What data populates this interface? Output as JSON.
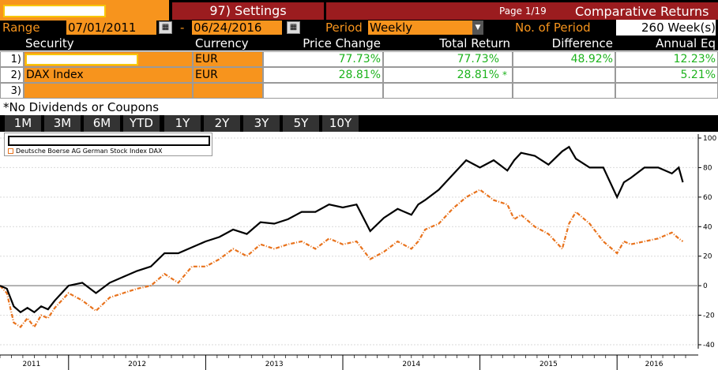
{
  "toolbar": {
    "settings_label": "97) Settings",
    "page": "Page 1/19",
    "title": "Comparative Returns"
  },
  "range": {
    "label": "Range",
    "start": "07/01/2011",
    "dash": "-",
    "end": "06/24/2016",
    "period_label": "Period",
    "period_value": "Weekly",
    "num_period_label": "No. of Period",
    "num_period_value": "260 Week(s)"
  },
  "table": {
    "headers": [
      "Security",
      "Currency",
      "Price Change",
      "Total Return",
      "Difference",
      "Annual Eq"
    ],
    "rows": [
      {
        "idx": "1)",
        "security": "",
        "currency": "EUR",
        "price_change": "77.73%",
        "total_return": "77.73%",
        "marker": "",
        "difference": "48.92%",
        "annual": "12.23%"
      },
      {
        "idx": "2)",
        "security": "DAX Index",
        "currency": "EUR",
        "price_change": "28.81%",
        "total_return": "28.81%",
        "marker": "*",
        "difference": "",
        "annual": "5.21%"
      },
      {
        "idx": "3)",
        "security": "",
        "currency": "",
        "price_change": "",
        "total_return": "",
        "marker": "",
        "difference": "",
        "annual": ""
      }
    ]
  },
  "note": "*No Dividends or Coupons",
  "timeframes": [
    "1M",
    "3M",
    "6M",
    "YTD",
    "1Y",
    "2Y",
    "3Y",
    "5Y",
    "10Y"
  ],
  "legend": {
    "series2": "Deutsche Boerse AG German Stock Index DAX"
  },
  "colors": {
    "accent_orange": "#f7941d",
    "maroon": "#9b1c1f",
    "positive_green": "#1db31d",
    "series1": "#000000",
    "series2": "#e8721c"
  },
  "chart_data": {
    "type": "line",
    "y_ticks": [
      100,
      80,
      60,
      40,
      20,
      0,
      -20,
      -40
    ],
    "ylim": [
      -40,
      100
    ],
    "x_ticks": [
      "2011",
      "2012",
      "2013",
      "2014",
      "2015",
      "2016"
    ],
    "xlim": [
      2011.5,
      2016.5
    ],
    "series": [
      {
        "name": "",
        "x": [
          2011.5,
          2011.55,
          2011.6,
          2011.65,
          2011.7,
          2011.75,
          2011.8,
          2011.85,
          2011.9,
          2011.95,
          2012.0,
          2012.1,
          2012.2,
          2012.3,
          2012.4,
          2012.5,
          2012.6,
          2012.7,
          2012.8,
          2012.9,
          2013.0,
          2013.1,
          2013.2,
          2013.3,
          2013.4,
          2013.5,
          2013.6,
          2013.7,
          2013.8,
          2013.9,
          2014.0,
          2014.1,
          2014.2,
          2014.3,
          2014.4,
          2014.5,
          2014.55,
          2014.6,
          2014.7,
          2014.8,
          2014.9,
          2015.0,
          2015.1,
          2015.2,
          2015.25,
          2015.3,
          2015.4,
          2015.5,
          2015.6,
          2015.65,
          2015.7,
          2015.8,
          2015.9,
          2016.0,
          2016.05,
          2016.1,
          2016.2,
          2016.3,
          2016.4,
          2016.45,
          2016.48
        ],
        "y": [
          0,
          -2,
          -14,
          -18,
          -15,
          -18,
          -14,
          -16,
          -10,
          -5,
          0,
          2,
          -5,
          2,
          6,
          10,
          13,
          22,
          22,
          26,
          30,
          33,
          38,
          35,
          43,
          42,
          45,
          50,
          50,
          55,
          53,
          55,
          37,
          46,
          52,
          48,
          55,
          58,
          65,
          75,
          85,
          80,
          85,
          78,
          85,
          90,
          88,
          82,
          91,
          94,
          86,
          80,
          80,
          60,
          70,
          73,
          80,
          80,
          76,
          80,
          70
        ]
      },
      {
        "name": "Deutsche Boerse AG German Stock Index DAX",
        "x": [
          2011.5,
          2011.55,
          2011.6,
          2011.65,
          2011.7,
          2011.75,
          2011.8,
          2011.85,
          2011.9,
          2011.95,
          2012.0,
          2012.1,
          2012.2,
          2012.3,
          2012.4,
          2012.5,
          2012.6,
          2012.7,
          2012.8,
          2012.9,
          2013.0,
          2013.1,
          2013.2,
          2013.3,
          2013.4,
          2013.5,
          2013.6,
          2013.7,
          2013.8,
          2013.9,
          2014.0,
          2014.1,
          2014.2,
          2014.3,
          2014.4,
          2014.5,
          2014.55,
          2014.6,
          2014.7,
          2014.8,
          2014.9,
          2015.0,
          2015.1,
          2015.2,
          2015.25,
          2015.3,
          2015.4,
          2015.5,
          2015.6,
          2015.65,
          2015.7,
          2015.8,
          2015.9,
          2016.0,
          2016.05,
          2016.1,
          2016.2,
          2016.3,
          2016.4,
          2016.45,
          2016.48
        ],
        "y": [
          0,
          -5,
          -25,
          -28,
          -22,
          -28,
          -20,
          -22,
          -15,
          -10,
          -5,
          -10,
          -17,
          -8,
          -5,
          -2,
          0,
          8,
          2,
          13,
          13,
          18,
          25,
          20,
          28,
          25,
          28,
          30,
          25,
          32,
          28,
          30,
          18,
          23,
          30,
          25,
          30,
          38,
          42,
          52,
          60,
          65,
          58,
          55,
          45,
          48,
          40,
          35,
          25,
          42,
          50,
          42,
          30,
          22,
          30,
          28,
          30,
          32,
          36,
          32,
          30
        ]
      }
    ]
  }
}
